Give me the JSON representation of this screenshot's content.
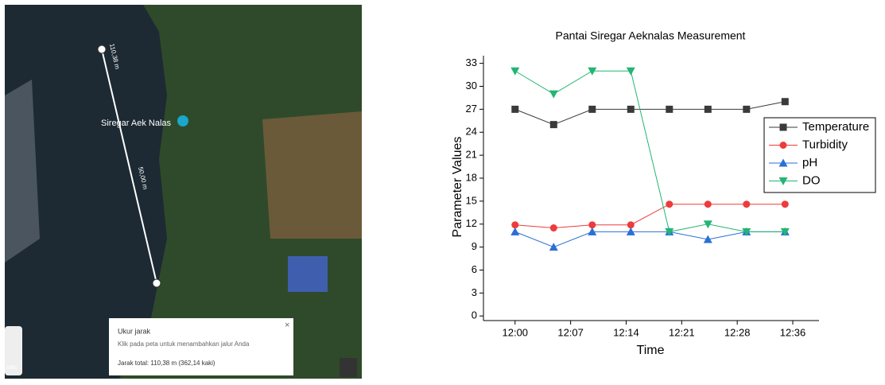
{
  "map": {
    "scale_top": "110,38 m",
    "scale_mid": "50,00 m",
    "place": "Siregar Aek Nalas",
    "side_label": "san",
    "panel": {
      "title": "Ukur jarak",
      "hint": "Klik pada peta untuk menambahkan jalur Anda",
      "total": "Jarak total: 110,38 m (362,14 kaki)"
    }
  },
  "chart_data": {
    "type": "line",
    "title": "Pantai Siregar Aeknalas Measurement",
    "x_label": "Time",
    "y_label": "Parameter Values",
    "x": [
      0,
      5,
      10,
      15,
      20,
      25,
      30,
      35
    ],
    "xlim": [
      -4.1,
      39.4
    ],
    "xticks": [
      {
        "value": 0,
        "label": "12:00"
      },
      {
        "value": 7.2,
        "label": "12:07"
      },
      {
        "value": 14.4,
        "label": "12:14"
      },
      {
        "value": 21.6,
        "label": "12:21"
      },
      {
        "value": 28.8,
        "label": "12:28"
      },
      {
        "value": 36,
        "label": "12:36"
      }
    ],
    "ylim": [
      -0.6,
      34
    ],
    "yticks": [
      0,
      3,
      6,
      9,
      12,
      15,
      18,
      21,
      24,
      27,
      30,
      33
    ],
    "legend": "right",
    "series": [
      {
        "name": "Temperature",
        "color": "#3a3a3a",
        "marker": "square",
        "values": [
          27,
          25,
          27,
          27,
          27,
          27,
          27,
          28
        ]
      },
      {
        "name": "Turbidity",
        "color": "#ee3b3b",
        "marker": "circle",
        "values": [
          11.9,
          11.5,
          11.9,
          11.9,
          14.6,
          14.6,
          14.6,
          14.6
        ]
      },
      {
        "name": "pH",
        "color": "#2a6fd6",
        "marker": "triangle-up",
        "values": [
          11,
          9,
          11,
          11,
          11,
          10,
          11,
          11
        ]
      },
      {
        "name": "DO",
        "color": "#22b573",
        "marker": "triangle-down",
        "values": [
          32,
          29,
          32,
          32,
          11,
          12,
          11,
          11
        ]
      }
    ]
  }
}
